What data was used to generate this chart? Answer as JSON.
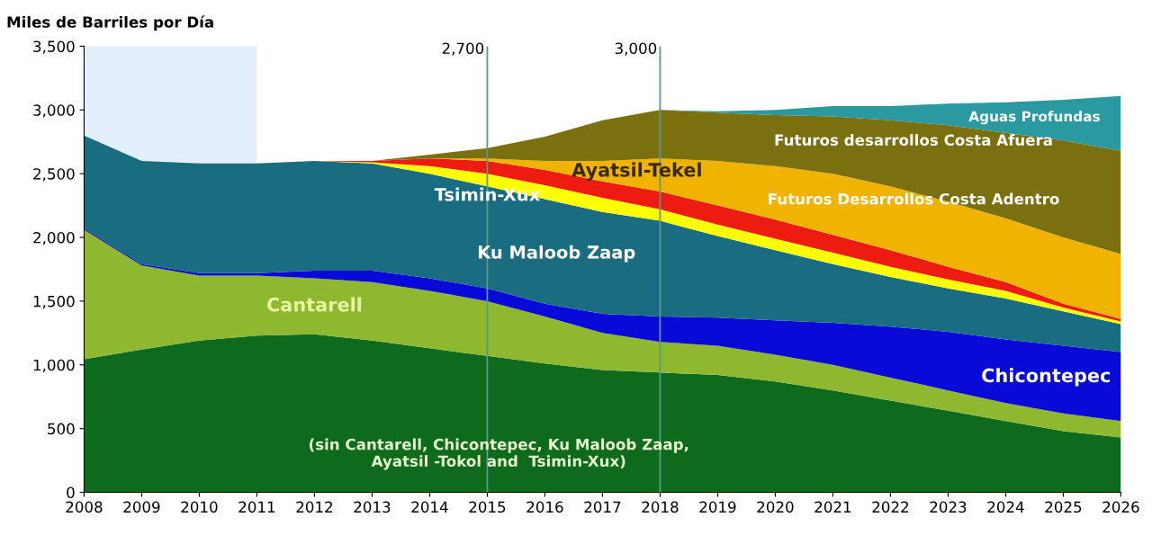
{
  "chart_data": {
    "type": "area",
    "stacked": true,
    "ylabel": "Miles de Barriles por Día",
    "x": [
      2008,
      2009,
      2010,
      2011,
      2012,
      2013,
      2014,
      2015,
      2016,
      2017,
      2018,
      2019,
      2020,
      2021,
      2022,
      2023,
      2024,
      2025,
      2026
    ],
    "series": [
      {
        "name": "(sin Cantarell, Chicontepec, Ku Maloob Zaap,\nAyatsil -Tokol and  Tsimin-Xux)",
        "color": "#0e6b1e",
        "values": [
          1045,
          1120,
          1190,
          1230,
          1240,
          1190,
          1130,
          1070,
          1010,
          960,
          940,
          920,
          870,
          800,
          720,
          640,
          560,
          480,
          430
        ]
      },
      {
        "name": "Cantarell",
        "color": "#8db830",
        "values": [
          1015,
          660,
          510,
          470,
          440,
          460,
          450,
          430,
          370,
          290,
          240,
          230,
          210,
          200,
          180,
          160,
          140,
          140,
          130
        ]
      },
      {
        "name": "Chicontepec",
        "color": "#0a0ad8",
        "values": [
          10,
          10,
          20,
          20,
          60,
          90,
          100,
          100,
          100,
          150,
          200,
          220,
          270,
          330,
          400,
          460,
          500,
          530,
          540
        ]
      },
      {
        "name": "Ku Maloob Zaap",
        "color": "#1a6d80",
        "values": [
          730,
          810,
          860,
          860,
          860,
          840,
          820,
          800,
          820,
          800,
          750,
          640,
          550,
          460,
          390,
          340,
          320,
          270,
          220
        ]
      },
      {
        "name": "Tsimin-Xux",
        "color": "#ffff00",
        "values": [
          0,
          0,
          0,
          0,
          0,
          10,
          60,
          100,
          110,
          110,
          90,
          90,
          90,
          90,
          80,
          70,
          60,
          30,
          20
        ]
      },
      {
        "name": "Ayatsil-Tekel",
        "color": "#ee1c10",
        "values": [
          0,
          0,
          0,
          0,
          0,
          10,
          60,
          100,
          120,
          130,
          140,
          150,
          150,
          140,
          130,
          100,
          70,
          30,
          20
        ]
      },
      {
        "name": "Futuros Desarrollos Costa Adentro",
        "color": "#f0b400",
        "values": [
          0,
          0,
          0,
          0,
          0,
          0,
          0,
          20,
          70,
          160,
          260,
          350,
          420,
          480,
          500,
          510,
          500,
          520,
          510
        ]
      },
      {
        "name": "Futuros desarrollos Costa Afuera",
        "color": "#7a7010",
        "values": [
          0,
          0,
          0,
          0,
          0,
          0,
          30,
          80,
          190,
          320,
          380,
          380,
          400,
          450,
          520,
          600,
          670,
          760,
          810
        ]
      },
      {
        "name": "Aguas Profundas",
        "color": "#2a9aa0",
        "values": [
          0,
          0,
          0,
          0,
          0,
          0,
          0,
          0,
          0,
          0,
          0,
          10,
          40,
          80,
          110,
          170,
          240,
          320,
          430
        ]
      }
    ],
    "xlim": [
      2008,
      2026
    ],
    "xticks": [
      2008,
      2009,
      2010,
      2011,
      2012,
      2013,
      2014,
      2015,
      2016,
      2017,
      2018,
      2019,
      2020,
      2021,
      2022,
      2023,
      2024,
      2025,
      2026
    ],
    "ylim": [
      0,
      3500
    ],
    "yticks": [
      {
        "value": 0,
        "label": "0"
      },
      {
        "value": 500,
        "label": "500"
      },
      {
        "value": 1000,
        "label": "1,000"
      },
      {
        "value": 1500,
        "label": "1,500"
      },
      {
        "value": 2000,
        "label": "2,000"
      },
      {
        "value": 2500,
        "label": "2,500"
      },
      {
        "value": 3000,
        "label": "3,000"
      },
      {
        "value": 3500,
        "label": "3,500"
      }
    ],
    "ref_lines": [
      {
        "axis": "x",
        "value": 2015,
        "color": "#5a9a8a"
      },
      {
        "axis": "x",
        "value": 2018,
        "color": "#5a9a8a"
      }
    ],
    "annotations": [
      "2,700",
      "3,000"
    ],
    "bands": [
      {
        "axis": "x",
        "from": 2008,
        "to": 2011,
        "color": "#e3f0fb"
      }
    ],
    "grid": false,
    "legend": false
  }
}
